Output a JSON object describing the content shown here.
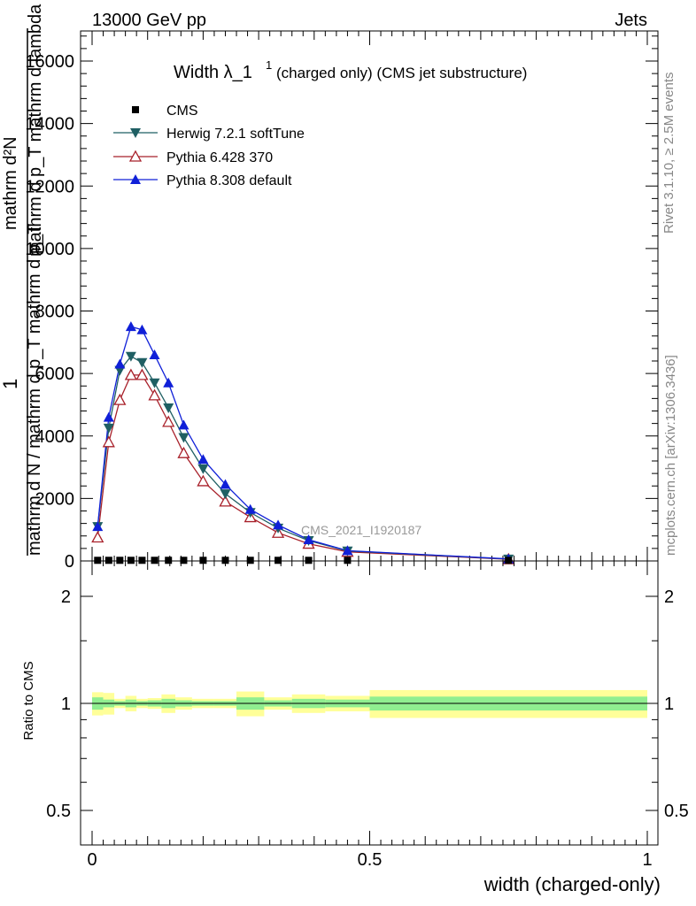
{
  "header": {
    "left": "13000 GeV pp",
    "right": "Jets",
    "side_top": "Rivet 3.1.10, ≥ 2.5M events",
    "side_bottom": "mcplots.cern.ch [arXiv:1306.3436]",
    "watermark": "CMS_2021_I1920187"
  },
  "title": {
    "main": "Width λ_1",
    "sup": "1",
    "rest": "(charged only) (CMS jet substructure)"
  },
  "ylabel": {
    "frac_num": "1",
    "frac_den": "mathrm d N / mathrm d p_T mathrm d p_T",
    "main_num": "mathrm d²N",
    "main_den": "mathrm d p_T mathrm d lambda"
  },
  "ratio_label": "Ratio to CMS",
  "xlabel": "width (charged-only)",
  "colors": {
    "cms": "#000000",
    "herwig": "#1f5f63",
    "pythia6": "#a8202a",
    "pythia8": "#1020d8",
    "band_outer": "#ffff99",
    "band_inner": "#90ee90"
  },
  "chart_data": {
    "type": "line",
    "xlim": [
      0,
      1
    ],
    "ylim": [
      0,
      16900
    ],
    "ratio_ylim": [
      0.45,
      2.3
    ],
    "xticks": [
      {
        "v": 0,
        "label": "0"
      },
      {
        "v": 0.5,
        "label": "0.5"
      },
      {
        "v": 1,
        "label": "1"
      }
    ],
    "yticks": [
      {
        "v": 0,
        "label": "0"
      },
      {
        "v": 2000,
        "label": "2000"
      },
      {
        "v": 4000,
        "label": "4000"
      },
      {
        "v": 6000,
        "label": "6000"
      },
      {
        "v": 8000,
        "label": "8000"
      },
      {
        "v": 10000,
        "label": "10000"
      },
      {
        "v": 12000,
        "label": "12000"
      },
      {
        "v": 14000,
        "label": "14000"
      },
      {
        "v": 16000,
        "label": "16000"
      }
    ],
    "ratio_yticks": [
      {
        "v": 0.5,
        "label": "0.5"
      },
      {
        "v": 1,
        "label": "1"
      },
      {
        "v": 2,
        "label": "2"
      }
    ],
    "bins": [
      0,
      0.02,
      0.04,
      0.06,
      0.08,
      0.1,
      0.125,
      0.15,
      0.18,
      0.22,
      0.26,
      0.31,
      0.36,
      0.42,
      0.5,
      1.0
    ],
    "series": [
      {
        "name": "CMS",
        "marker": "square",
        "x": [
          0.01,
          0.03,
          0.05,
          0.07,
          0.09,
          0.1125,
          0.1375,
          0.165,
          0.2,
          0.24,
          0.285,
          0.335,
          0.39,
          0.46,
          0.75
        ],
        "y": [
          20,
          20,
          20,
          20,
          20,
          20,
          20,
          20,
          20,
          20,
          20,
          20,
          20,
          20,
          20
        ]
      },
      {
        "name": "Herwig 7.2.1 softTune",
        "marker": "triangle-down",
        "x": [
          0.01,
          0.03,
          0.05,
          0.07,
          0.09,
          0.1125,
          0.1375,
          0.165,
          0.2,
          0.24,
          0.285,
          0.335,
          0.39,
          0.46,
          0.75
        ],
        "y": [
          1100,
          4250,
          6100,
          6550,
          6350,
          5700,
          4900,
          3950,
          2950,
          2150,
          1550,
          1050,
          650,
          320,
          60
        ]
      },
      {
        "name": "Pythia 6.428 370",
        "marker": "triangle-up-open",
        "x": [
          0.01,
          0.03,
          0.05,
          0.07,
          0.09,
          0.1125,
          0.1375,
          0.165,
          0.2,
          0.24,
          0.285,
          0.335,
          0.39,
          0.46,
          0.75
        ],
        "y": [
          750,
          3800,
          5150,
          5950,
          5950,
          5300,
          4450,
          3450,
          2550,
          1900,
          1400,
          900,
          550,
          290,
          55
        ]
      },
      {
        "name": "Pythia 8.308 default",
        "marker": "triangle-up",
        "x": [
          0.01,
          0.03,
          0.05,
          0.07,
          0.09,
          0.1125,
          0.1375,
          0.165,
          0.2,
          0.24,
          0.285,
          0.335,
          0.39,
          0.46,
          0.75
        ],
        "y": [
          1100,
          4600,
          6300,
          7500,
          7400,
          6600,
          5700,
          4350,
          3250,
          2450,
          1650,
          1150,
          680,
          330,
          65
        ]
      }
    ],
    "ratio_band": {
      "outer": [
        [
          0.925,
          1.075
        ],
        [
          0.93,
          1.07
        ],
        [
          0.97,
          1.03
        ],
        [
          0.95,
          1.05
        ],
        [
          0.97,
          1.03
        ],
        [
          0.965,
          1.035
        ],
        [
          0.94,
          1.06
        ],
        [
          0.96,
          1.04
        ],
        [
          0.97,
          1.03
        ],
        [
          0.97,
          1.03
        ],
        [
          0.92,
          1.08
        ],
        [
          0.96,
          1.04
        ],
        [
          0.94,
          1.06
        ],
        [
          0.95,
          1.05
        ],
        [
          0.91,
          1.09
        ]
      ],
      "inner": [
        [
          0.96,
          1.04
        ],
        [
          0.975,
          1.025
        ],
        [
          0.985,
          1.015
        ],
        [
          0.975,
          1.025
        ],
        [
          0.985,
          1.015
        ],
        [
          0.98,
          1.02
        ],
        [
          0.97,
          1.03
        ],
        [
          0.98,
          1.02
        ],
        [
          0.985,
          1.015
        ],
        [
          0.985,
          1.015
        ],
        [
          0.96,
          1.04
        ],
        [
          0.98,
          1.02
        ],
        [
          0.97,
          1.03
        ],
        [
          0.975,
          1.025
        ],
        [
          0.955,
          1.045
        ]
      ]
    },
    "legend_placement": "top-left"
  }
}
